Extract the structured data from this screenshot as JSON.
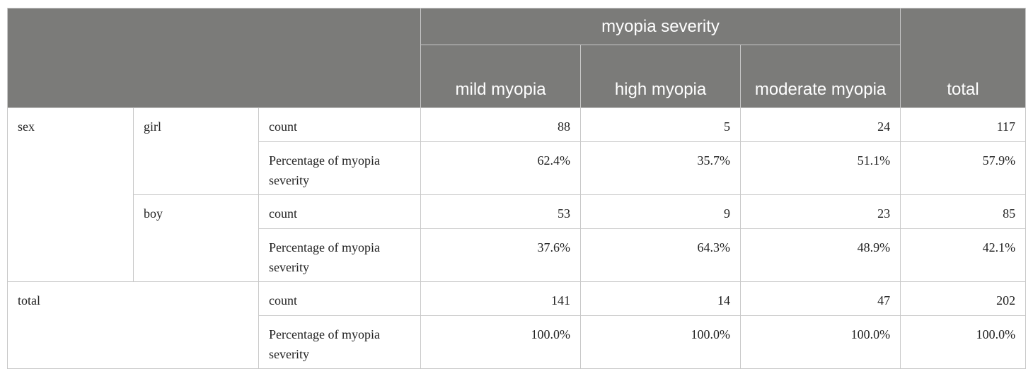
{
  "header": {
    "group_label": "myopia severity",
    "columns": [
      "mild myopia",
      "high myopia",
      "moderate myopia",
      "total"
    ]
  },
  "rows": {
    "sex_label": "sex",
    "girl": {
      "label": "girl",
      "count_label": "count",
      "count": [
        "88",
        "5",
        "24",
        "117"
      ],
      "pct_label": "Percentage of myopia severity",
      "pct": [
        "62.4%",
        "35.7%",
        "51.1%",
        "57.9%"
      ]
    },
    "boy": {
      "label": "boy",
      "count_label": "count",
      "count": [
        "53",
        "9",
        "23",
        "85"
      ],
      "pct_label": "Percentage of myopia severity",
      "pct": [
        "37.6%",
        "64.3%",
        "48.9%",
        "42.1%"
      ]
    },
    "total": {
      "label": "total",
      "count_label": "count",
      "count": [
        "141",
        "14",
        "47",
        "202"
      ],
      "pct_label": "Percentage of myopia severity",
      "pct": [
        "100.0%",
        "100.0%",
        "100.0%",
        "100.0%"
      ]
    }
  }
}
